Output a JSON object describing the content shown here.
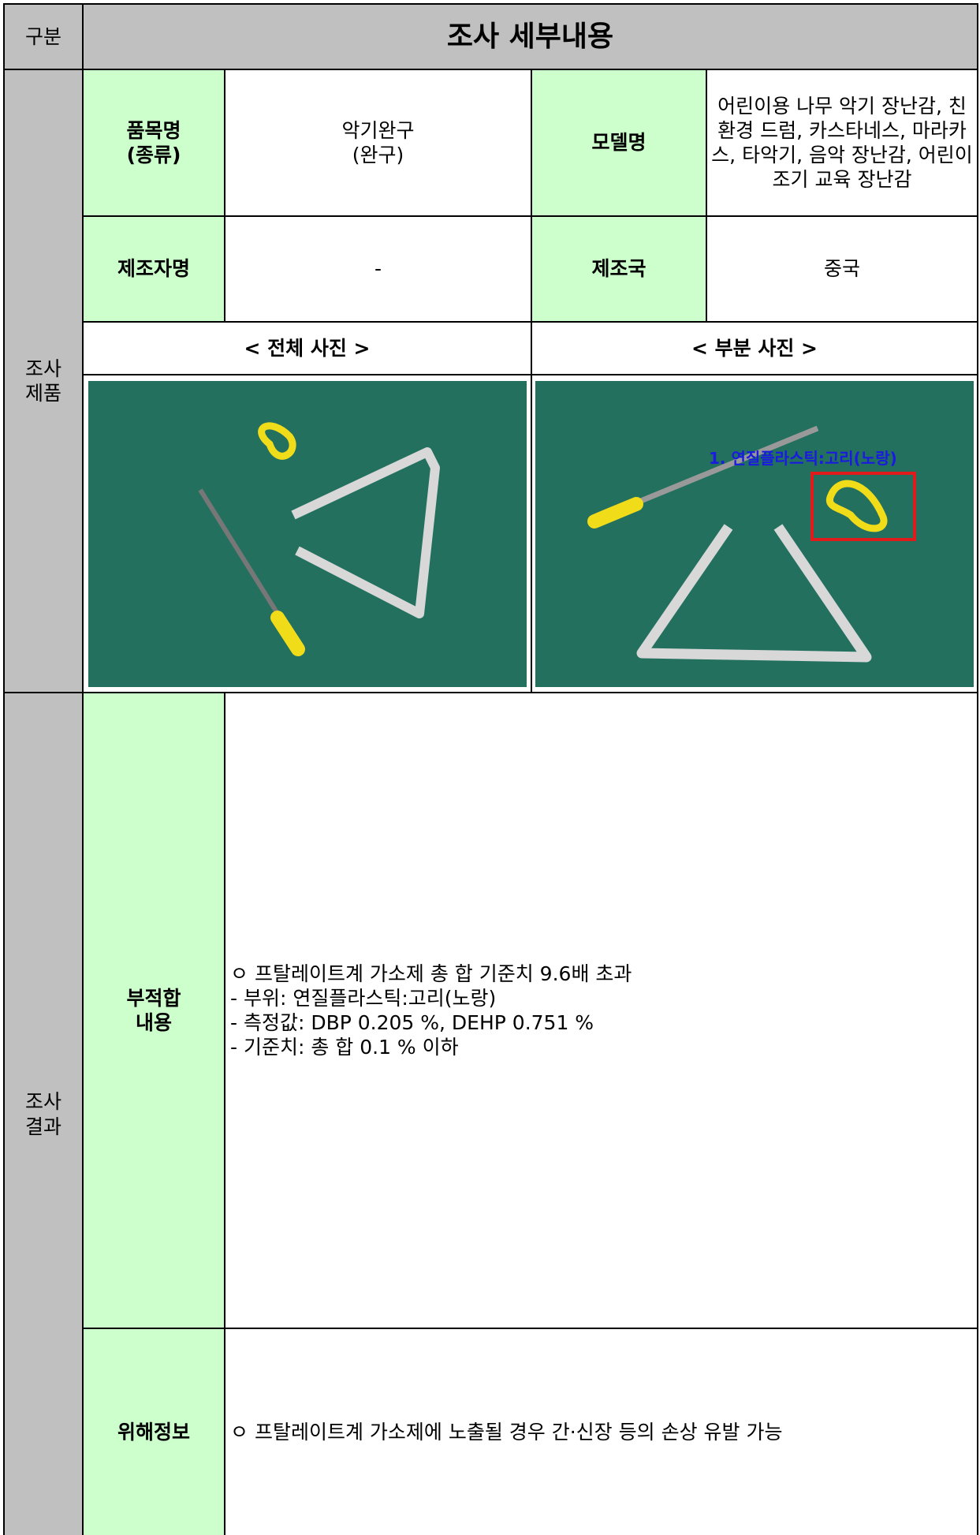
{
  "header": {
    "section": "구분",
    "title": "조사 세부내용"
  },
  "product": {
    "section": [
      "조사",
      "제품"
    ],
    "item_label": [
      "품목명",
      "(종류)"
    ],
    "item_value": [
      "악기완구",
      "(완구)"
    ],
    "model_label": "모델명",
    "model_value": "어린이용 나무 악기 장난감, 친환경 드럼, 카스타네스, 마라카스, 타악기, 음악 장난감, 어린이 조기 교육 장난감",
    "maker_label": "제조자명",
    "maker_value": "-",
    "country_label": "제조국",
    "country_value": "중국",
    "photo_full_label": "< 전체 사진 >",
    "photo_part_label": "< 부분 사진 >",
    "photo_annotation": "1. 연질플라스틱:고리(노랑)"
  },
  "result": {
    "section": [
      "조사",
      "결과"
    ],
    "nonconformity_label": [
      "부적합",
      "내용"
    ],
    "nonconformity_lines": [
      "ㅇ 프탈레이트계 가소제 총 합 기준치 9.6배 초과",
      "- 부위: 연질플라스틱:고리(노랑)",
      "- 측정값: DBP 0.205 %, DEHP 0.751 %",
      "- 기준치: 총 합 0.1 % 이하"
    ],
    "hazard_label": "위해정보",
    "hazard_text": "ㅇ 프탈레이트계 가소제에 노출될 경우 간·신장 등의 손상 유발 가능"
  }
}
